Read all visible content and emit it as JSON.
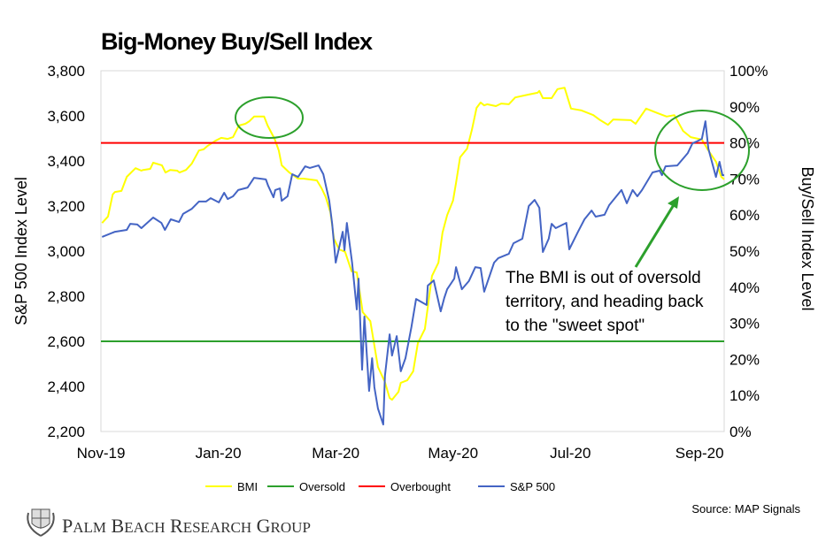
{
  "chart_data": {
    "type": "line",
    "title": "Big-Money Buy/Sell Index",
    "xlabel": "",
    "ylabel": "S&P 500 Index Level",
    "y2label": "Buy/Sell Index Level",
    "x_units": "months since Nov 1, 2019",
    "xlim": [
      0,
      10.62
    ],
    "ylim": [
      2200,
      3800
    ],
    "y2lim": [
      0,
      100
    ],
    "grid": false,
    "legend_placement": "bottom",
    "x_ticks": [
      {
        "x": 0,
        "label": "Nov-19"
      },
      {
        "x": 2,
        "label": "Jan-20"
      },
      {
        "x": 4,
        "label": "Mar-20"
      },
      {
        "x": 6,
        "label": "May-20"
      },
      {
        "x": 8,
        "label": "Jul-20"
      },
      {
        "x": 10.2,
        "label": "Sep-20"
      }
    ],
    "y_ticks": [
      "2,200",
      "2,400",
      "2,600",
      "2,800",
      "3,000",
      "3,200",
      "3,400",
      "3,600",
      "3,800"
    ],
    "y_tick_values": [
      2200,
      2400,
      2600,
      2800,
      3000,
      3200,
      3400,
      3600,
      3800
    ],
    "y2_ticks": [
      "0%",
      "10%",
      "20%",
      "30%",
      "40%",
      "50%",
      "60%",
      "70%",
      "80%",
      "90%",
      "100%"
    ],
    "y2_tick_values": [
      0,
      10,
      20,
      30,
      40,
      50,
      60,
      70,
      80,
      90,
      100
    ],
    "series": [
      {
        "name": "BMI",
        "axis": "right",
        "color": "#ffff00",
        "x": [
          0.02,
          0.12,
          0.2,
          0.24,
          0.35,
          0.44,
          0.59,
          0.69,
          0.72,
          0.84,
          0.89,
          1.04,
          1.1,
          1.18,
          1.3,
          1.34,
          1.45,
          1.55,
          1.67,
          1.75,
          1.82,
          1.95,
          2.05,
          2.16,
          2.25,
          2.35,
          2.46,
          2.53,
          2.61,
          2.78,
          2.84,
          2.96,
          3.03,
          3.08,
          3.21,
          3.36,
          3.45,
          3.68,
          3.76,
          3.83,
          3.91,
          3.97,
          4.06,
          4.16,
          4.27,
          4.36,
          4.46,
          4.59,
          4.72,
          4.84,
          4.92,
          4.96,
          5.07,
          5.11,
          5.22,
          5.32,
          5.4,
          5.52,
          5.64,
          5.75,
          5.82,
          5.9,
          6.0,
          6.05,
          6.12,
          6.24,
          6.32,
          6.4,
          6.47,
          6.53,
          6.58,
          6.73,
          6.82,
          6.95,
          7.06,
          7.29,
          7.44,
          7.47,
          7.53,
          7.68,
          7.78,
          7.9,
          8.01,
          8.19,
          8.39,
          8.49,
          8.64,
          8.73,
          9.03,
          9.11,
          9.29,
          9.49,
          9.64,
          9.77,
          9.92,
          10.05,
          10.24,
          10.35,
          10.48,
          10.57,
          10.62
        ],
        "values": [
          57.8,
          59.6,
          65.7,
          66.4,
          66.7,
          70.6,
          73.0,
          72.3,
          72.5,
          72.8,
          74.5,
          73.8,
          71.8,
          72.5,
          72.3,
          71.8,
          72.5,
          74.3,
          77.9,
          78.2,
          79.2,
          80.6,
          81.4,
          81.1,
          81.6,
          84.8,
          85.3,
          86.0,
          87.3,
          87.3,
          84.8,
          81.1,
          77.9,
          73.8,
          71.8,
          70.1,
          70.1,
          69.6,
          67.4,
          65.0,
          60.8,
          53.4,
          50.5,
          49.8,
          44.4,
          44.1,
          33.1,
          30.6,
          17.9,
          13.7,
          9.3,
          8.8,
          11.0,
          13.5,
          14.2,
          16.7,
          24.5,
          28.4,
          43.1,
          46.8,
          55.1,
          60.0,
          64.0,
          68.9,
          76.0,
          78.4,
          83.6,
          89.7,
          91.2,
          90.4,
          90.7,
          90.2,
          90.9,
          90.7,
          92.6,
          93.4,
          93.9,
          94.4,
          92.4,
          92.4,
          94.9,
          95.3,
          89.5,
          89.0,
          87.7,
          86.5,
          85.0,
          86.5,
          86.3,
          85.3,
          89.5,
          88.2,
          87.3,
          87.7,
          83.3,
          81.6,
          80.9,
          77.9,
          74.8,
          70.6,
          69.9
        ]
      },
      {
        "name": "Oversold",
        "axis": "right",
        "color": "#2ca02c",
        "constant": 25
      },
      {
        "name": "Overbought",
        "axis": "right",
        "color": "#ff0000",
        "constant": 80
      },
      {
        "name": "S&P 500",
        "axis": "left",
        "color": "#4464c4",
        "x": [
          0.02,
          0.24,
          0.44,
          0.5,
          0.62,
          0.69,
          0.89,
          1.03,
          1.09,
          1.19,
          1.33,
          1.4,
          1.55,
          1.67,
          1.79,
          1.87,
          2.01,
          2.1,
          2.16,
          2.25,
          2.34,
          2.5,
          2.61,
          2.81,
          2.85,
          2.94,
          2.97,
          3.05,
          3.08,
          3.18,
          3.26,
          3.36,
          3.48,
          3.56,
          3.71,
          3.79,
          3.89,
          3.94,
          4.0,
          4.12,
          4.15,
          4.19,
          4.28,
          4.36,
          4.39,
          4.45,
          4.49,
          4.57,
          4.62,
          4.66,
          4.72,
          4.81,
          4.84,
          4.92,
          4.96,
          5.04,
          5.11,
          5.19,
          5.29,
          5.37,
          5.55,
          5.57,
          5.67,
          5.79,
          5.85,
          5.9,
          6.02,
          6.05,
          6.15,
          6.27,
          6.38,
          6.47,
          6.53,
          6.7,
          6.77,
          6.95,
          7.03,
          7.18,
          7.29,
          7.39,
          7.47,
          7.53,
          7.63,
          7.68,
          7.75,
          7.93,
          7.98,
          8.13,
          8.24,
          8.36,
          8.43,
          8.58,
          8.66,
          8.87,
          8.96,
          9.06,
          9.14,
          9.22,
          9.4,
          9.52,
          9.56,
          9.62,
          9.82,
          10.0,
          10.08,
          10.15,
          10.24,
          10.3,
          10.35,
          10.48,
          10.54,
          10.59,
          10.62
        ],
        "values": [
          3063,
          3086,
          3094,
          3121,
          3118,
          3102,
          3149,
          3125,
          3094,
          3141,
          3129,
          3165,
          3188,
          3220,
          3220,
          3235,
          3216,
          3259,
          3231,
          3243,
          3271,
          3282,
          3325,
          3318,
          3290,
          3239,
          3271,
          3278,
          3223,
          3243,
          3341,
          3329,
          3376,
          3369,
          3380,
          3341,
          3223,
          3121,
          2949,
          3086,
          3004,
          3125,
          2949,
          2741,
          2878,
          2474,
          2710,
          2380,
          2525,
          2396,
          2302,
          2231,
          2447,
          2631,
          2537,
          2623,
          2467,
          2525,
          2663,
          2788,
          2761,
          2847,
          2870,
          2733,
          2792,
          2831,
          2878,
          2929,
          2831,
          2867,
          2929,
          2925,
          2820,
          2949,
          2969,
          2988,
          3035,
          3055,
          3200,
          3227,
          3192,
          2996,
          3055,
          3121,
          3102,
          3125,
          3008,
          3086,
          3141,
          3180,
          3153,
          3161,
          3204,
          3271,
          3212,
          3271,
          3243,
          3271,
          3349,
          3357,
          3337,
          3376,
          3380,
          3435,
          3478,
          3486,
          3498,
          3576,
          3455,
          3329,
          3396,
          3337,
          3337
        ]
      }
    ],
    "annotation": {
      "lines": [
        "The BMI is out of oversold",
        "territory, and heading back",
        "to the \"sweet spot\""
      ],
      "color": "#2ca02c"
    },
    "source": "Source: MAP Signals"
  },
  "logo": {
    "text": "Palm Beach Research Group"
  }
}
